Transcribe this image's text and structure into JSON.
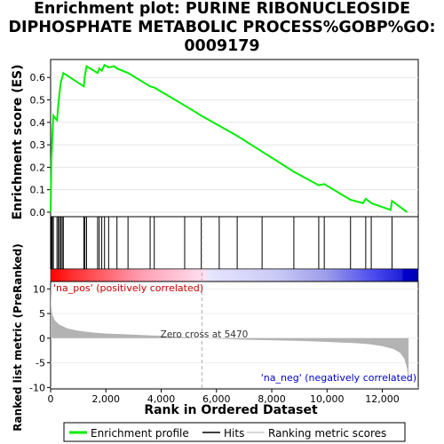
{
  "title_lines": [
    "Enrichment plot: PURINE RIBONUCLEOSIDE",
    "DIPHOSPHATE METABOLIC PROCESS%GOBP%GO:",
    "0009179"
  ],
  "colors": {
    "es_line": "#00ee00",
    "hits": "#000000",
    "ranking_fill": "#b3b3b3",
    "pos_label": "#cc0000",
    "neg_label": "#0000cc",
    "heat_pos": "#ff0000",
    "heat_neg": "#0000ff"
  },
  "chart_data": [
    {
      "type": "line",
      "name": "enrichment-score",
      "ylabel": "Enrichment score (ES)",
      "ylim": [
        -0.02,
        0.68
      ],
      "yticks": [
        0.0,
        0.1,
        0.2,
        0.3,
        0.4,
        0.5,
        0.6
      ],
      "ytick_labels": [
        "0.0",
        "0.1",
        "0.2",
        "0.3",
        "0.4",
        "0.5",
        "0.6"
      ],
      "xlim": [
        0,
        13300
      ],
      "x": [
        0,
        30,
        60,
        100,
        150,
        230,
        280,
        320,
        370,
        420,
        460,
        1200,
        1240,
        1300,
        1700,
        1760,
        1850,
        1950,
        2100,
        2300,
        2400,
        2800,
        3600,
        3750,
        4850,
        5450,
        6100,
        6750,
        7650,
        8800,
        9700,
        9900,
        10850,
        11300,
        11400,
        11600,
        12300,
        12350,
        12900
      ],
      "y": [
        0.0,
        0.23,
        0.33,
        0.43,
        0.42,
        0.41,
        0.48,
        0.53,
        0.58,
        0.6,
        0.62,
        0.56,
        0.61,
        0.65,
        0.62,
        0.64,
        0.63,
        0.655,
        0.645,
        0.65,
        0.64,
        0.62,
        0.56,
        0.555,
        0.475,
        0.43,
        0.385,
        0.34,
        0.27,
        0.18,
        0.12,
        0.125,
        0.055,
        0.04,
        0.06,
        0.04,
        0.01,
        0.05,
        0.0
      ],
      "legend": [
        "Enrichment profile",
        "Hits",
        "Ranking metric scores"
      ],
      "legend_position": "bottom"
    },
    {
      "type": "scatter",
      "name": "hits",
      "x": [
        30,
        60,
        100,
        230,
        280,
        320,
        370,
        420,
        460,
        1200,
        1240,
        1300,
        1700,
        1760,
        1850,
        1950,
        2100,
        2400,
        2800,
        3600,
        3750,
        4850,
        5450,
        6100,
        6750,
        7650,
        8800,
        9700,
        9900,
        10850,
        11400,
        11600,
        12350
      ]
    },
    {
      "type": "area",
      "name": "ranking-metric",
      "xlabel": "Rank in Ordered Dataset",
      "ylabel": "Ranked list metric (PreRanked)",
      "xlim": [
        0,
        13300
      ],
      "ylim": [
        -10.3,
        11.5
      ],
      "yticks": [
        -10,
        -5,
        0,
        5,
        10
      ],
      "ytick_labels": [
        "-10",
        "-5",
        "0",
        "5",
        "10"
      ],
      "xticks": [
        0,
        2000,
        4000,
        6000,
        8000,
        10000,
        12000
      ],
      "xtick_labels": [
        "0",
        "2,000",
        "4,000",
        "6,000",
        "8,000",
        "10,000",
        "12,000"
      ],
      "x": [
        0,
        20,
        60,
        150,
        300,
        600,
        1000,
        1500,
        2000,
        3000,
        4000,
        5470,
        7000,
        9000,
        10000,
        11000,
        11500,
        12000,
        12400,
        12650,
        12800,
        12900,
        12950
      ],
      "y": [
        11.2,
        6.5,
        4.8,
        3.6,
        2.8,
        2.0,
        1.5,
        1.15,
        0.95,
        0.7,
        0.45,
        0.0,
        -0.3,
        -0.55,
        -0.75,
        -1.0,
        -1.2,
        -1.6,
        -2.2,
        -3.0,
        -4.2,
        -6.2,
        -9.3
      ],
      "zero_cross_label": "Zero cross at 5470",
      "pos_label": "'na_pos' (positively correlated)",
      "neg_label": "'na_neg' (negatively correlated)"
    }
  ]
}
